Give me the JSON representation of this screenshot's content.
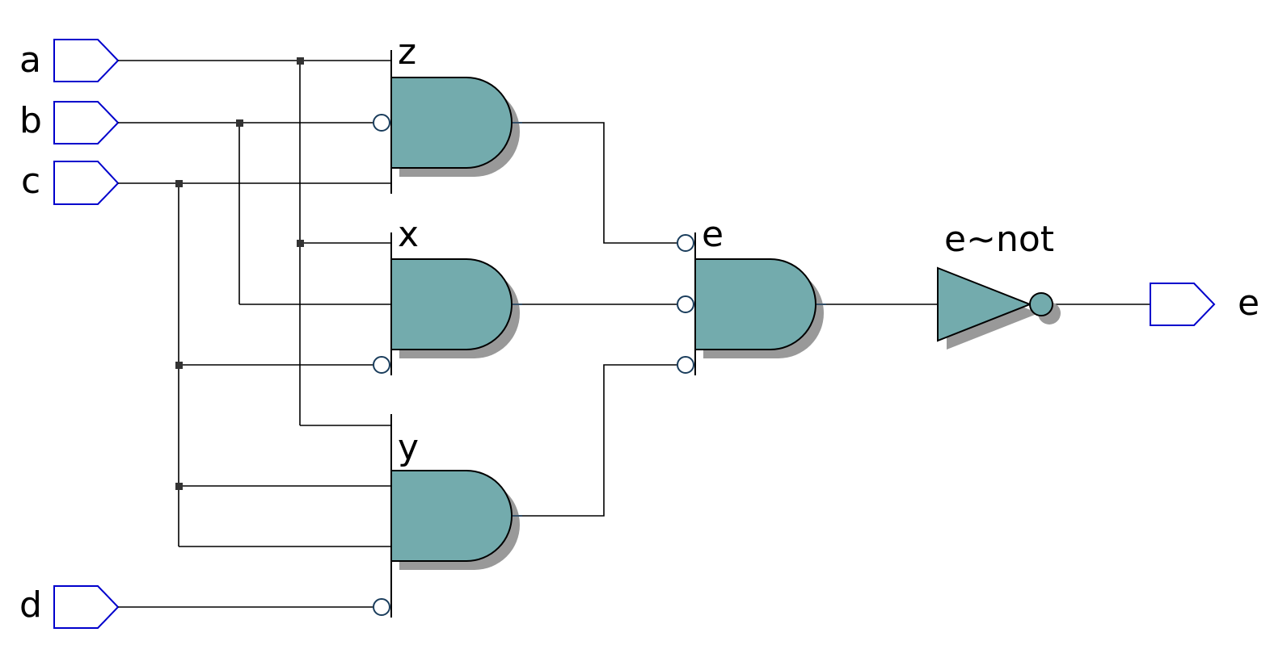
{
  "colors": {
    "gate_fill": "#73abad",
    "gate_shadow": "#999999",
    "port_outline": "#0000cc",
    "wire": "#000000",
    "background": "#ffffff"
  },
  "inputs": [
    {
      "name": "a"
    },
    {
      "name": "b"
    },
    {
      "name": "c"
    },
    {
      "name": "d"
    }
  ],
  "output": {
    "name": "e"
  },
  "gates": {
    "z": {
      "type": "AND",
      "label": "z",
      "inputs": [
        "a",
        "NOT b",
        "c"
      ]
    },
    "x": {
      "type": "AND",
      "label": "x",
      "inputs": [
        "a",
        "b",
        "NOT c"
      ]
    },
    "y": {
      "type": "AND",
      "label": "y",
      "inputs": [
        "a",
        "c",
        "c",
        "NOT d"
      ]
    },
    "e": {
      "type": "AND",
      "label": "e",
      "inputs": [
        "NOT z",
        "NOT x",
        "NOT y"
      ]
    },
    "e_not": {
      "type": "NOT",
      "label": "e~not",
      "inputs": [
        "e"
      ]
    }
  }
}
